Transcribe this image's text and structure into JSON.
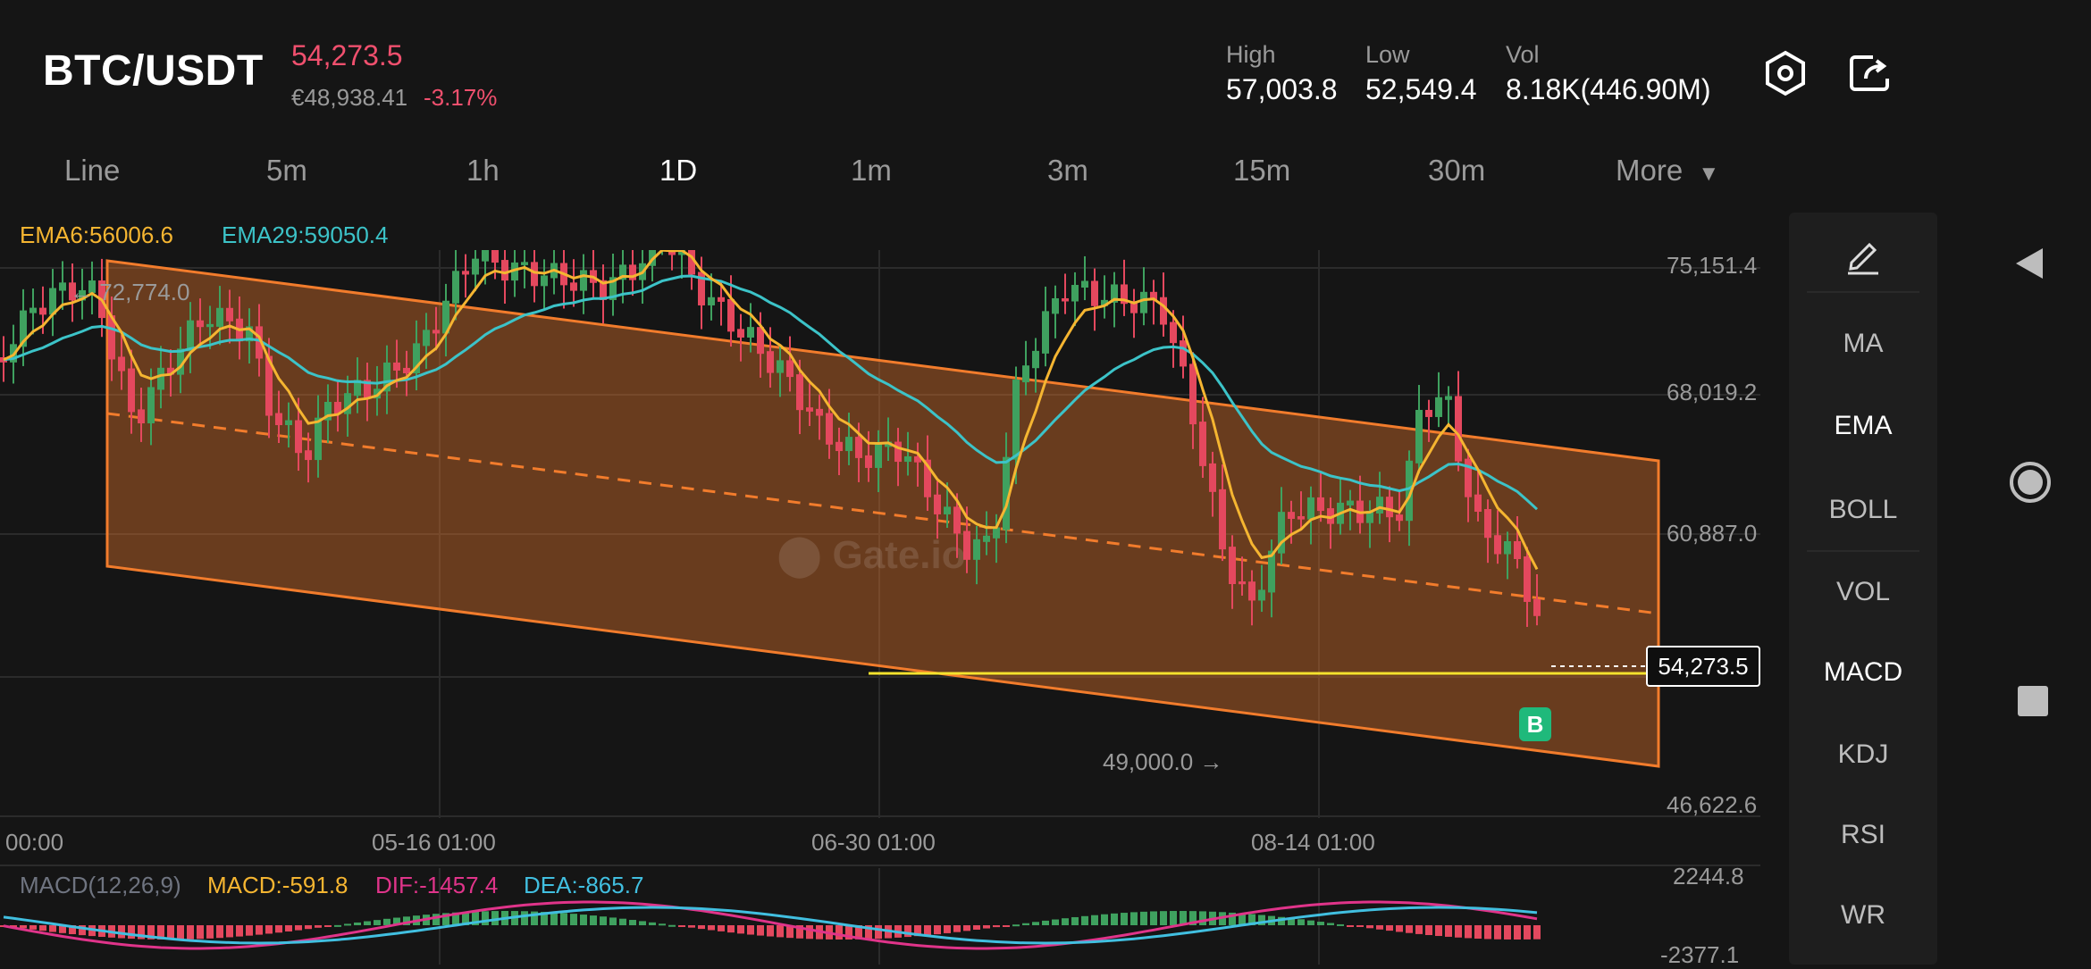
{
  "header": {
    "pair": "BTC/USDT",
    "last_price": "54,273.5",
    "fiat_price": "€48,938.41",
    "change_pct": "-3.17%",
    "high_label": "High",
    "high_value": "57,003.8",
    "low_label": "Low",
    "low_value": "52,549.4",
    "vol_label": "Vol",
    "vol_value": "8.18K(446.90M)",
    "icons": [
      "settings-hex-icon",
      "share-icon"
    ]
  },
  "timeframes": {
    "items": [
      "Line",
      "5m",
      "1h",
      "1D",
      "1m",
      "3m",
      "15m",
      "30m"
    ],
    "more": "More",
    "active": "1D"
  },
  "indicators": {
    "ema6": "EMA6:56006.6",
    "ema29": "EMA29:59050.4",
    "macd_name": "MACD(12,26,9)",
    "macd": "MACD:-591.8",
    "dif": "DIF:-1457.4",
    "dea": "DEA:-865.7"
  },
  "colors": {
    "up": "#3fa15f",
    "down": "#e4485e",
    "ema6": "#f5b531",
    "ema29": "#3cc3c8",
    "channel": "#f27c2c",
    "support": "#f4e22e",
    "dif": "#e0348a",
    "dea": "#41bfe0"
  },
  "chart": {
    "price_axis": [
      "75,151.4",
      "68,019.2",
      "60,887.0",
      "54,273.5",
      "46,622.6"
    ],
    "date_axis": [
      "00:00",
      "05-16 01:00",
      "06-30 01:00",
      "08-14 01:00"
    ],
    "high_marker": "← 72,774.0",
    "low_marker": "49,000.0 →",
    "current_price_tag": "54,273.5",
    "buy_marker": "B",
    "watermark": "Gate.io",
    "macd_axis": [
      "2244.8",
      "-2377.1"
    ]
  },
  "sidebar": {
    "items": [
      "MA",
      "EMA",
      "BOLL",
      "VOL",
      "MACD",
      "KDJ",
      "RSI",
      "WR"
    ],
    "active": [
      "EMA",
      "MACD"
    ],
    "draw_icon": "pen-icon"
  },
  "nav": {
    "icons": [
      "back-triangle-icon",
      "home-circle-icon",
      "recents-square-icon"
    ]
  }
}
